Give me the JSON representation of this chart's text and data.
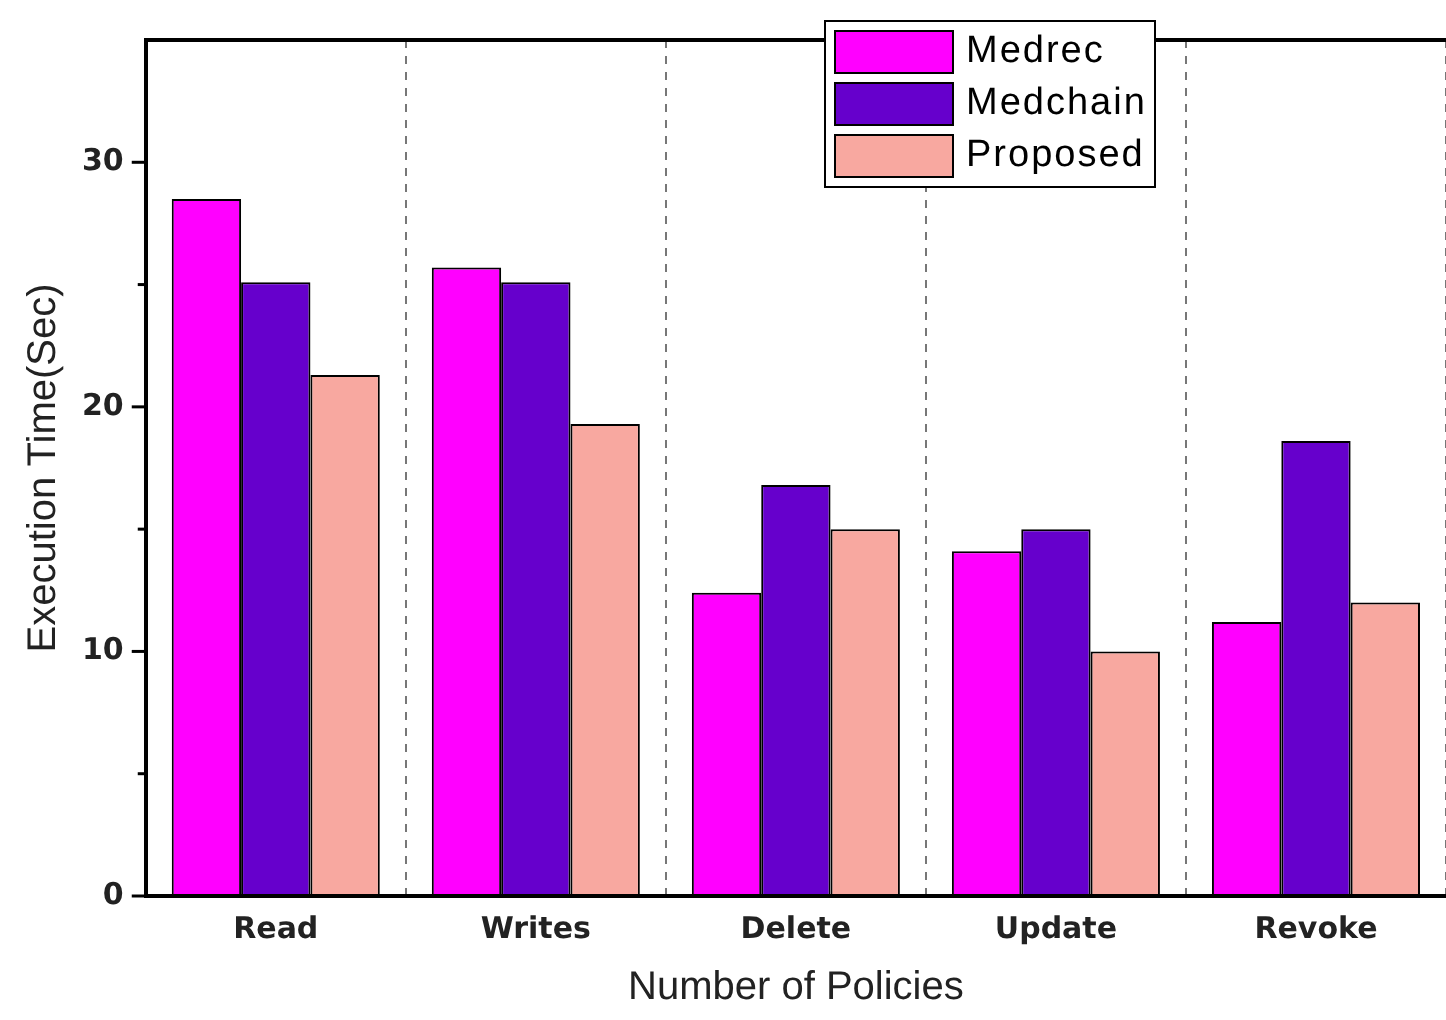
{
  "chart_data": {
    "type": "bar",
    "xlabel": "Number of Policies",
    "ylabel": "Execution Time(Sec)",
    "categories": [
      "Read",
      "Writes",
      "Delete",
      "Update",
      "Revoke"
    ],
    "series": [
      {
        "name": "Medrec",
        "color": "#ff00ff",
        "values": [
          28.5,
          25.7,
          12.4,
          14.1,
          11.2
        ]
      },
      {
        "name": "Medchain",
        "color": "#6600cc",
        "values": [
          25.1,
          25.1,
          16.8,
          15.0,
          18.6
        ]
      },
      {
        "name": "Proposed",
        "color": "#f8a8a0",
        "values": [
          21.3,
          19.3,
          15.0,
          10.0,
          12.0
        ]
      }
    ],
    "ylim": [
      0,
      35
    ],
    "yticks": [
      0,
      {
        "value": 5,
        "label": null
      },
      10,
      {
        "value": 15,
        "label": null
      },
      20,
      {
        "value": 25,
        "label": null
      },
      30
    ],
    "grid": "x",
    "legend": "top right"
  }
}
